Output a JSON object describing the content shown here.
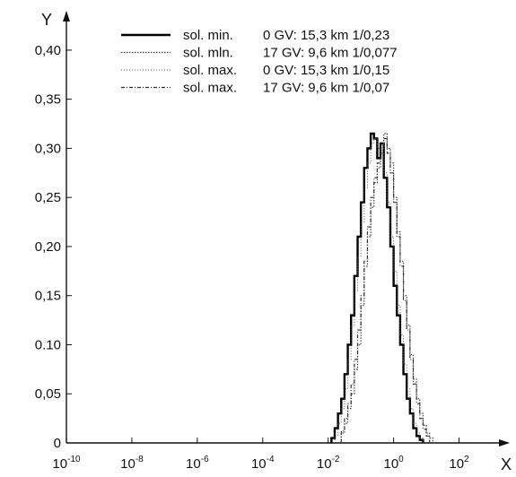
{
  "chart_data": {
    "type": "histogram",
    "x_axis": {
      "label": "X",
      "scale": "log10",
      "range_exponents": [
        -10,
        3
      ],
      "tick_exponents": [
        -10,
        -8,
        -6,
        -4,
        -2,
        0,
        2
      ]
    },
    "y_axis": {
      "label": "Y",
      "range": [
        0,
        0.42
      ],
      "ticks": [
        0,
        0.05,
        0.1,
        0.15,
        0.2,
        0.25,
        0.3,
        0.35,
        0.4
      ],
      "tick_labels": [
        "0",
        "0,05",
        "0.10",
        "0,15",
        "0,20",
        "0,25",
        "0,30",
        "0,35",
        "0,40"
      ]
    },
    "grid": false,
    "legend_position": "top-right",
    "series": [
      {
        "name": "sol. min.",
        "legend_rest": "0 GV:  15,3 km 1/0,23",
        "style": "solid",
        "bins": [
          [
            -1.9,
            0.005
          ],
          [
            -1.8,
            0.015
          ],
          [
            -1.7,
            0.03
          ],
          [
            -1.6,
            0.045
          ],
          [
            -1.5,
            0.07
          ],
          [
            -1.4,
            0.1
          ],
          [
            -1.3,
            0.13
          ],
          [
            -1.2,
            0.17
          ],
          [
            -1.1,
            0.21
          ],
          [
            -1.0,
            0.245
          ],
          [
            -0.9,
            0.28
          ],
          [
            -0.8,
            0.3
          ],
          [
            -0.7,
            0.315
          ],
          [
            -0.6,
            0.31
          ],
          [
            -0.5,
            0.29
          ],
          [
            -0.4,
            0.305
          ],
          [
            -0.3,
            0.27
          ],
          [
            -0.2,
            0.24
          ],
          [
            -0.1,
            0.2
          ],
          [
            0.0,
            0.16
          ],
          [
            0.1,
            0.13
          ],
          [
            0.2,
            0.1
          ],
          [
            0.3,
            0.07
          ],
          [
            0.4,
            0.045
          ],
          [
            0.5,
            0.03
          ],
          [
            0.6,
            0.015
          ],
          [
            0.7,
            0.007
          ],
          [
            0.8,
            0.003
          ]
        ]
      },
      {
        "name": "sol. mln.",
        "legend_rest": "17 GV:  9,6 km 1/0,077",
        "style": "dotted",
        "bins": [
          [
            -1.6,
            0.01
          ],
          [
            -1.5,
            0.02
          ],
          [
            -1.4,
            0.035
          ],
          [
            -1.3,
            0.05
          ],
          [
            -1.2,
            0.075
          ],
          [
            -1.1,
            0.1
          ],
          [
            -1.0,
            0.14
          ],
          [
            -0.9,
            0.18
          ],
          [
            -0.8,
            0.21
          ],
          [
            -0.7,
            0.24
          ],
          [
            -0.6,
            0.265
          ],
          [
            -0.5,
            0.28
          ],
          [
            -0.4,
            0.3
          ],
          [
            -0.3,
            0.315
          ],
          [
            -0.2,
            0.3
          ],
          [
            -0.1,
            0.285
          ],
          [
            0.0,
            0.25
          ],
          [
            0.1,
            0.215
          ],
          [
            0.2,
            0.185
          ],
          [
            0.3,
            0.15
          ],
          [
            0.4,
            0.12
          ],
          [
            0.5,
            0.09
          ],
          [
            0.6,
            0.065
          ],
          [
            0.7,
            0.045
          ],
          [
            0.8,
            0.03
          ],
          [
            0.9,
            0.018
          ],
          [
            1.0,
            0.01
          ],
          [
            1.1,
            0.005
          ]
        ]
      },
      {
        "name": "sol. max.",
        "legend_rest": "0 GV:  15,3 km 1/0,15",
        "style": "dotted-fine",
        "bins": [
          [
            -1.8,
            0.008
          ],
          [
            -1.7,
            0.02
          ],
          [
            -1.6,
            0.035
          ],
          [
            -1.5,
            0.055
          ],
          [
            -1.4,
            0.085
          ],
          [
            -1.3,
            0.12
          ],
          [
            -1.2,
            0.155
          ],
          [
            -1.1,
            0.19
          ],
          [
            -1.0,
            0.225
          ],
          [
            -0.9,
            0.26
          ],
          [
            -0.8,
            0.285
          ],
          [
            -0.7,
            0.305
          ],
          [
            -0.6,
            0.31
          ],
          [
            -0.5,
            0.3
          ],
          [
            -0.4,
            0.295
          ],
          [
            -0.3,
            0.275
          ],
          [
            -0.2,
            0.245
          ],
          [
            -0.1,
            0.21
          ],
          [
            0.0,
            0.175
          ],
          [
            0.1,
            0.14
          ],
          [
            0.2,
            0.11
          ],
          [
            0.3,
            0.08
          ],
          [
            0.4,
            0.055
          ],
          [
            0.5,
            0.035
          ],
          [
            0.6,
            0.02
          ],
          [
            0.7,
            0.01
          ],
          [
            0.8,
            0.005
          ]
        ]
      },
      {
        "name": "sol. max.",
        "legend_rest": "17 GV:  9,6 km 1/0,07",
        "style": "dash-dot",
        "bins": [
          [
            -1.6,
            0.012
          ],
          [
            -1.5,
            0.025
          ],
          [
            -1.4,
            0.04
          ],
          [
            -1.3,
            0.06
          ],
          [
            -1.2,
            0.085
          ],
          [
            -1.1,
            0.115
          ],
          [
            -1.0,
            0.15
          ],
          [
            -0.9,
            0.185
          ],
          [
            -0.8,
            0.22
          ],
          [
            -0.7,
            0.25
          ],
          [
            -0.6,
            0.27
          ],
          [
            -0.5,
            0.285
          ],
          [
            -0.4,
            0.3
          ],
          [
            -0.3,
            0.31
          ],
          [
            -0.2,
            0.295
          ],
          [
            -0.1,
            0.275
          ],
          [
            0.0,
            0.245
          ],
          [
            0.1,
            0.21
          ],
          [
            0.2,
            0.18
          ],
          [
            0.3,
            0.145
          ],
          [
            0.4,
            0.115
          ],
          [
            0.5,
            0.085
          ],
          [
            0.6,
            0.06
          ],
          [
            0.7,
            0.04
          ],
          [
            0.8,
            0.025
          ],
          [
            0.9,
            0.014
          ],
          [
            1.0,
            0.007
          ]
        ]
      }
    ]
  }
}
